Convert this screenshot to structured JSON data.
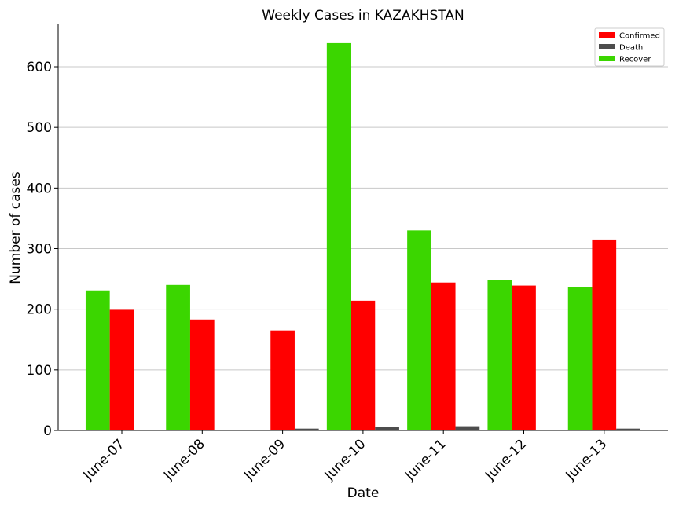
{
  "chart_data": {
    "type": "bar",
    "title": "Weekly Cases in KAZAKHSTAN",
    "xlabel": "Date",
    "ylabel": "Number of cases",
    "categories": [
      "June-07",
      "June-08",
      "June-09",
      "June-10",
      "June-11",
      "June-12",
      "June-13"
    ],
    "series": [
      {
        "name": "Recover",
        "color": "#3bd600",
        "values": [
          231,
          240,
          0,
          639,
          330,
          248,
          236
        ]
      },
      {
        "name": "Confirmed",
        "color": "#ff0000",
        "values": [
          199,
          183,
          165,
          214,
          244,
          239,
          315
        ]
      },
      {
        "name": "Death",
        "color": "#4d4d4d",
        "values": [
          1,
          0,
          3,
          6,
          7,
          0,
          3
        ]
      }
    ],
    "legend_order": [
      "Confirmed",
      "Death",
      "Recover"
    ],
    "ylim": [
      0,
      670
    ],
    "yticks": [
      0,
      100,
      200,
      300,
      400,
      500,
      600
    ],
    "grid": "horizontal",
    "legend_position": "top-right"
  }
}
